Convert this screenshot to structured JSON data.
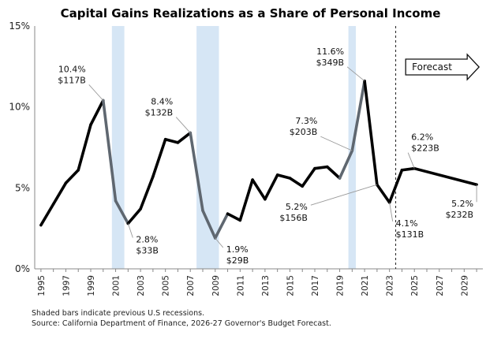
{
  "chart_data": {
    "type": "line",
    "title": "Capital Gains Realizations as a Share of Personal Income",
    "y_ticks": [
      "15%",
      "10%",
      "5%",
      "0%"
    ],
    "ylim": [
      0,
      15
    ],
    "x_range": [
      1994.5,
      2030.5
    ],
    "x_tick_labels": [
      "1995",
      "1997",
      "1999",
      "2001",
      "2003",
      "2005",
      "2007",
      "2009",
      "2011",
      "2013",
      "2015",
      "2017",
      "2019",
      "2021",
      "2023",
      "2025",
      "2027",
      "2029"
    ],
    "recessions": [
      {
        "start": 2000.7,
        "end": 2001.7
      },
      {
        "start": 2007.5,
        "end": 2009.3
      },
      {
        "start": 2019.7,
        "end": 2020.3
      }
    ],
    "forecast_start": 2023.5,
    "forecast_label": "Forecast",
    "series": [
      {
        "x": [
          1995,
          1996,
          1997,
          1998,
          1999,
          2000,
          2001,
          2002,
          2003,
          2004,
          2005,
          2006,
          2007,
          2008,
          2009,
          2010,
          2011,
          2012,
          2013,
          2014,
          2015,
          2016,
          2017,
          2018,
          2019,
          2020,
          2021,
          2022,
          2023,
          2024,
          2025,
          2030
        ],
        "y": [
          2.7,
          4.0,
          5.3,
          6.1,
          8.9,
          10.4,
          4.2,
          2.8,
          3.7,
          5.7,
          8.0,
          7.8,
          8.4,
          3.6,
          1.9,
          3.4,
          3.0,
          5.5,
          4.3,
          5.8,
          5.6,
          5.1,
          6.2,
          6.3,
          5.6,
          7.3,
          11.6,
          5.2,
          4.1,
          6.1,
          6.2,
          5.2
        ]
      }
    ],
    "annotations": [
      {
        "pct": "10.4%",
        "amt": "$117B",
        "x": 2000,
        "y": 10.4
      },
      {
        "pct": "2.8%",
        "amt": "$33B",
        "x": 2002,
        "y": 2.8
      },
      {
        "pct": "8.4%",
        "amt": "$132B",
        "x": 2007,
        "y": 8.4
      },
      {
        "pct": "1.9%",
        "amt": "$29B",
        "x": 2009,
        "y": 1.9
      },
      {
        "pct": "7.3%",
        "amt": "$203B",
        "x": 2020,
        "y": 7.3
      },
      {
        "pct": "11.6%",
        "amt": "$349B",
        "x": 2021,
        "y": 11.6
      },
      {
        "pct": "5.2%",
        "amt": "$156B",
        "x": 2022,
        "y": 5.2
      },
      {
        "pct": "4.1%",
        "amt": "$131B",
        "x": 2023,
        "y": 4.1
      },
      {
        "pct": "6.2%",
        "amt": "$223B",
        "x": 2025,
        "y": 6.2
      },
      {
        "pct": "5.2%",
        "amt": "$232B",
        "x": 2030,
        "y": 5.2
      }
    ],
    "grid": false,
    "legend": "none"
  },
  "footnotes": {
    "line1": "Shaded bars indicate previous U.S recessions.",
    "line2": "Source: California Department of Finance, 2026-27 Governor's Budget Forecast."
  }
}
